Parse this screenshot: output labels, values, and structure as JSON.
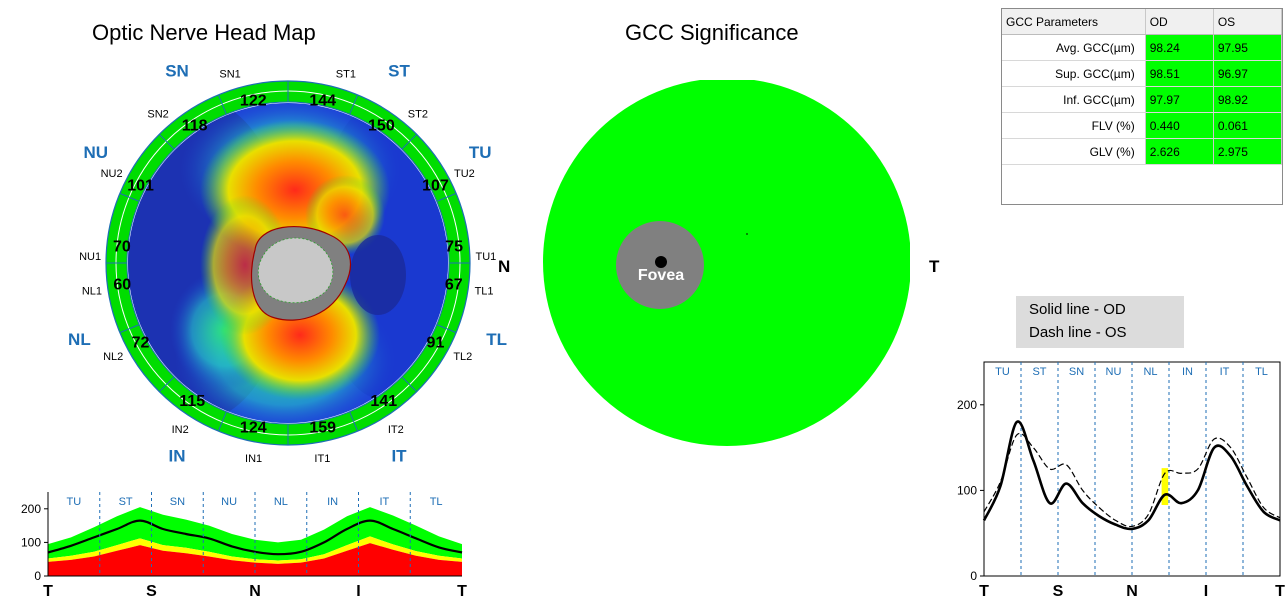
{
  "titles": {
    "onh_map": "Optic Nerve Head Map",
    "gcc_significance": "GCC Significance"
  },
  "onh_map": {
    "quadrant_labels": [
      "SN",
      "ST",
      "NU",
      "TU",
      "NL",
      "TL",
      "IN",
      "IT"
    ],
    "sector_labels": [
      "SN1",
      "ST1",
      "SN2",
      "ST2",
      "NU2",
      "TU2",
      "NU1",
      "TU1",
      "NL1",
      "TL1",
      "NL2",
      "TL2",
      "IN2",
      "IT2",
      "IN1",
      "IT1"
    ],
    "sector_values": [
      "122",
      "144",
      "118",
      "150",
      "101",
      "107",
      "70",
      "75",
      "60",
      "67",
      "72",
      "91",
      "115",
      "141",
      "124",
      "159"
    ]
  },
  "gcc": {
    "fovea_label": "Fovea",
    "nasal_label": "N",
    "temporal_label": "T"
  },
  "colors": {
    "normal_green": "#00ff00",
    "borderline_yellow": "#ffff00",
    "abnormal_red": "#ff0000",
    "sector_blue": "#1e6eb5",
    "legend_bg": "#dcdcdc"
  },
  "params_table": {
    "headers": [
      "GCC Parameters",
      "OD",
      "OS"
    ],
    "rows": [
      {
        "name": "Avg. GCC(µm)",
        "od": "98.24",
        "os": "97.95"
      },
      {
        "name": "Sup. GCC(µm)",
        "od": "98.51",
        "os": "96.97"
      },
      {
        "name": "Inf. GCC(µm)",
        "od": "97.97",
        "os": "98.92"
      },
      {
        "name": "FLV (%)",
        "od": "0.440",
        "os": "0.061"
      },
      {
        "name": "GLV (%)",
        "od": "2.626",
        "os": "2.975"
      }
    ]
  },
  "legend": {
    "solid": "Solid line - OD",
    "dash": "Dash line - OS"
  },
  "chart_data": [
    {
      "type": "area",
      "sectors": [
        "TU",
        "ST",
        "SN",
        "NU",
        "NL",
        "IN",
        "IT",
        "TL"
      ],
      "x_tick_labels": [
        "T",
        "S",
        "N",
        "I",
        "T"
      ],
      "y_ticks": [
        0,
        100,
        200
      ],
      "ylim": [
        0,
        250
      ],
      "x": [
        0,
        20,
        40,
        60,
        80,
        100,
        120,
        140,
        160,
        180,
        200,
        220,
        240,
        260,
        280,
        300,
        320,
        340,
        360
      ],
      "series": [
        {
          "values": [
            70,
            90,
            115,
            140,
            165,
            140,
            125,
            112,
            88,
            72,
            65,
            72,
            100,
            140,
            165,
            140,
            112,
            85,
            70
          ]
        }
      ],
      "bands": {
        "red_top": [
          42,
          48,
          58,
          75,
          92,
          75,
          68,
          58,
          47,
          40,
          36,
          40,
          52,
          75,
          98,
          78,
          60,
          48,
          42
        ],
        "yellow_top": [
          52,
          60,
          72,
          92,
          112,
          92,
          84,
          72,
          58,
          50,
          46,
          50,
          65,
          92,
          118,
          94,
          74,
          60,
          52
        ],
        "green_top": [
          95,
          115,
          145,
          178,
          205,
          182,
          168,
          150,
          125,
          108,
          100,
          108,
          138,
          178,
          205,
          180,
          150,
          118,
          95
        ]
      }
    },
    {
      "type": "line",
      "sectors": [
        "TU",
        "ST",
        "SN",
        "NU",
        "NL",
        "IN",
        "IT",
        "TL"
      ],
      "x_tick_labels": [
        "T",
        "S",
        "N",
        "I",
        "T"
      ],
      "y_ticks": [
        0,
        100,
        200
      ],
      "ylim": [
        0,
        250
      ],
      "x": [
        0,
        20,
        40,
        60,
        80,
        100,
        120,
        140,
        160,
        180,
        200,
        220,
        240,
        260,
        280,
        300,
        320,
        340,
        360
      ],
      "series": [
        {
          "name": "OD",
          "values": [
            65,
            105,
            180,
            135,
            85,
            108,
            85,
            70,
            60,
            55,
            65,
            95,
            85,
            100,
            150,
            140,
            105,
            75,
            65
          ]
        },
        {
          "name": "OS",
          "values": [
            75,
            110,
            165,
            150,
            125,
            130,
            100,
            80,
            65,
            58,
            72,
            120,
            120,
            125,
            160,
            150,
            115,
            80,
            68
          ]
        }
      ]
    }
  ]
}
